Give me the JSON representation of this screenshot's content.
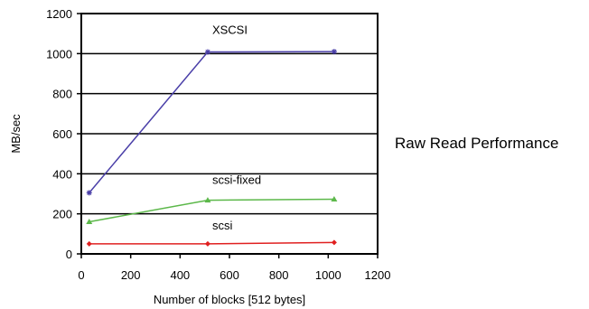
{
  "chart_data": {
    "type": "line",
    "title": "Raw Read Performance",
    "xlabel": "Number of blocks [512 bytes]",
    "ylabel": "MB/sec",
    "xlim": [
      0,
      1200
    ],
    "ylim": [
      0,
      1200
    ],
    "xticks": [
      0,
      200,
      400,
      600,
      800,
      1000,
      1200
    ],
    "yticks": [
      0,
      200,
      400,
      600,
      800,
      1000,
      1200
    ],
    "grid": "horizontal",
    "legend": "inline labels",
    "series": [
      {
        "name": "XSCSI",
        "color": "#4a3fa8",
        "marker": "star",
        "x": [
          32,
          512,
          1024
        ],
        "y": [
          305,
          1008,
          1010
        ]
      },
      {
        "name": "scsi-fixed",
        "color": "#5cb84a",
        "marker": "triangle",
        "x": [
          32,
          512,
          1024
        ],
        "y": [
          160,
          268,
          273
        ]
      },
      {
        "name": "scsi",
        "color": "#e02020",
        "marker": "diamond",
        "x": [
          32,
          512,
          1024
        ],
        "y": [
          50,
          50,
          57
        ]
      }
    ]
  }
}
